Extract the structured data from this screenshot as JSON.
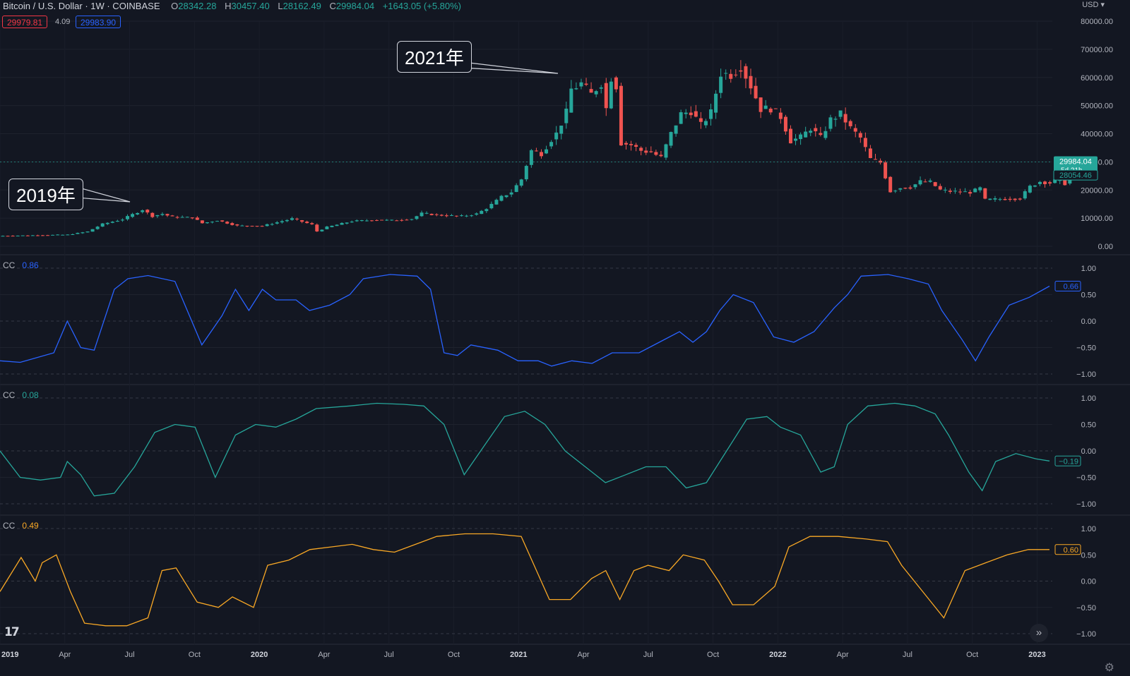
{
  "header": {
    "symbol": "Bitcoin / U.S. Dollar · 1W · COINBASE",
    "o_label": "O",
    "o_value": "28342.28",
    "h_label": "H",
    "h_value": "30457.40",
    "l_label": "L",
    "l_value": "28162.49",
    "c_label": "C",
    "c_value": "29984.04",
    "change": "+1643.05 (+5.80%)",
    "bid": "29979.81",
    "spread": "4.09",
    "ask": "29983.90"
  },
  "currency": "USD",
  "colors": {
    "background": "#131722",
    "up": "#26a69a",
    "down": "#ef5350",
    "cc1": "#2962ff",
    "cc2": "#26a69a",
    "cc3": "#f9a825",
    "text": "#d1d4dc",
    "grid": "#2a2e39"
  },
  "icons": {
    "logo": "tradingview-logo-icon",
    "settings": "gear-icon",
    "scroll": "double-chevron-right-icon"
  },
  "logo_text": "17",
  "annotations": [
    {
      "text": "2019年",
      "week": 30
    },
    {
      "text": "2021年",
      "week": 116
    }
  ],
  "price_labels": {
    "last": "29984.04",
    "countdown": "5d 21h",
    "secondary": "28054.46"
  },
  "chart_data": [
    {
      "type": "candlestick",
      "title": "Bitcoin / U.S. Dollar · 1W · COINBASE",
      "price_scale": [
        0,
        85000
      ],
      "y_ticks": [
        "0.00",
        "10000.00",
        "20000.00",
        "30000.00",
        "40000.00",
        "50000.00",
        "60000.00",
        "70000.00",
        "80000.00"
      ],
      "x_ticks": [
        "2019",
        "Apr",
        "Jul",
        "Oct",
        "2020",
        "Apr",
        "Jul",
        "Oct",
        "2021",
        "Apr",
        "Jul",
        "Oct",
        "2022",
        "Apr",
        "Jul",
        "Oct",
        "2023"
      ],
      "last_price": 29984.04,
      "secondary_price": 28054.46,
      "close_keypoints": [
        [
          0,
          3700
        ],
        [
          8,
          3950
        ],
        [
          13,
          4100
        ],
        [
          17,
          5200
        ],
        [
          20,
          7900
        ],
        [
          24,
          9600
        ],
        [
          26,
          11300
        ],
        [
          28,
          13000
        ],
        [
          30,
          10700
        ],
        [
          32,
          11500
        ],
        [
          34,
          10400
        ],
        [
          38,
          10200
        ],
        [
          40,
          8200
        ],
        [
          43,
          9200
        ],
        [
          47,
          7300
        ],
        [
          52,
          7200
        ],
        [
          58,
          9800
        ],
        [
          62,
          7700
        ],
        [
          63,
          5300
        ],
        [
          65,
          6800
        ],
        [
          70,
          8900
        ],
        [
          75,
          9400
        ],
        [
          78,
          9200
        ],
        [
          82,
          9700
        ],
        [
          84,
          11700
        ],
        [
          88,
          11000
        ],
        [
          92,
          10700
        ],
        [
          95,
          11500
        ],
        [
          97,
          13500
        ],
        [
          100,
          17500
        ],
        [
          102,
          19300
        ],
        [
          104,
          23800
        ],
        [
          106,
          34000
        ],
        [
          108,
          33000
        ],
        [
          110,
          38000
        ],
        [
          111,
          40000
        ],
        [
          113,
          47500
        ],
        [
          114,
          55800
        ],
        [
          116,
          57800
        ],
        [
          118,
          54000
        ],
        [
          120,
          58000
        ],
        [
          121,
          49000
        ],
        [
          122,
          60000
        ],
        [
          123,
          57000
        ],
        [
          124,
          36700
        ],
        [
          126,
          36000
        ],
        [
          128,
          34000
        ],
        [
          130,
          33500
        ],
        [
          132,
          31500
        ],
        [
          134,
          40000
        ],
        [
          136,
          47000
        ],
        [
          138,
          48000
        ],
        [
          140,
          43000
        ],
        [
          142,
          47500
        ],
        [
          144,
          61500
        ],
        [
          146,
          61000
        ],
        [
          148,
          64000
        ],
        [
          150,
          57000
        ],
        [
          152,
          48800
        ],
        [
          154,
          49000
        ],
        [
          156,
          46000
        ],
        [
          158,
          37500
        ],
        [
          160,
          38700
        ],
        [
          162,
          42000
        ],
        [
          164,
          38500
        ],
        [
          166,
          45000
        ],
        [
          168,
          47000
        ],
        [
          170,
          42000
        ],
        [
          172,
          38500
        ],
        [
          174,
          31000
        ],
        [
          176,
          29800
        ],
        [
          178,
          19500
        ],
        [
          180,
          20800
        ],
        [
          182,
          21000
        ],
        [
          184,
          23000
        ],
        [
          186,
          22800
        ],
        [
          188,
          20000
        ],
        [
          190,
          19500
        ],
        [
          194,
          19200
        ],
        [
          196,
          20600
        ],
        [
          197,
          16500
        ],
        [
          200,
          16800
        ],
        [
          204,
          17000
        ],
        [
          206,
          21200
        ],
        [
          208,
          23000
        ],
        [
          210,
          22500
        ],
        [
          212,
          24000
        ],
        [
          213,
          22300
        ],
        [
          214,
          29984
        ]
      ],
      "candles_count": 215
    },
    {
      "type": "line",
      "name": "CC",
      "current_value": "0.86",
      "axis_label": "0.66",
      "ylim": [
        -1.2,
        1.3
      ],
      "y_ticks": [
        "1.00",
        "0.50",
        "0.00",
        "−0.50",
        "−1.00"
      ],
      "keypoints": [
        [
          0,
          -0.75
        ],
        [
          3,
          -0.78
        ],
        [
          8,
          -0.6
        ],
        [
          10,
          0.0
        ],
        [
          12,
          -0.5
        ],
        [
          14,
          -0.55
        ],
        [
          17,
          0.6
        ],
        [
          19,
          0.8
        ],
        [
          22,
          0.86
        ],
        [
          26,
          0.75
        ],
        [
          30,
          -0.45
        ],
        [
          33,
          0.1
        ],
        [
          35,
          0.6
        ],
        [
          37,
          0.2
        ],
        [
          39,
          0.6
        ],
        [
          41,
          0.4
        ],
        [
          44,
          0.4
        ],
        [
          46,
          0.2
        ],
        [
          49,
          0.3
        ],
        [
          52,
          0.5
        ],
        [
          54,
          0.8
        ],
        [
          58,
          0.88
        ],
        [
          62,
          0.85
        ],
        [
          64,
          0.6
        ],
        [
          66,
          -0.6
        ],
        [
          68,
          -0.65
        ],
        [
          70,
          -0.45
        ],
        [
          74,
          -0.55
        ],
        [
          77,
          -0.75
        ],
        [
          80,
          -0.75
        ],
        [
          82,
          -0.85
        ],
        [
          85,
          -0.75
        ],
        [
          88,
          -0.8
        ],
        [
          91,
          -0.6
        ],
        [
          95,
          -0.6
        ],
        [
          98,
          -0.4
        ],
        [
          101,
          -0.2
        ],
        [
          103,
          -0.4
        ],
        [
          105,
          -0.2
        ],
        [
          107,
          0.2
        ],
        [
          109,
          0.5
        ],
        [
          112,
          0.35
        ],
        [
          115,
          -0.3
        ],
        [
          118,
          -0.4
        ],
        [
          121,
          -0.2
        ],
        [
          124,
          0.25
        ],
        [
          126,
          0.5
        ],
        [
          128,
          0.85
        ],
        [
          132,
          0.88
        ],
        [
          135,
          0.8
        ],
        [
          138,
          0.7
        ],
        [
          140,
          0.2
        ],
        [
          143,
          -0.35
        ],
        [
          145,
          -0.75
        ],
        [
          147,
          -0.3
        ],
        [
          150,
          0.3
        ],
        [
          153,
          0.45
        ],
        [
          156,
          0.66
        ]
      ]
    },
    {
      "type": "line",
      "name": "CC",
      "current_value": "0.08",
      "axis_label": "−0.19",
      "ylim": [
        -1.2,
        1.3
      ],
      "y_ticks": [
        "1.00",
        "0.50",
        "0.00",
        "−0.50",
        "−1.00"
      ],
      "keypoints": [
        [
          0,
          0.0
        ],
        [
          3,
          -0.5
        ],
        [
          6,
          -0.55
        ],
        [
          9,
          -0.5
        ],
        [
          10,
          -0.2
        ],
        [
          12,
          -0.45
        ],
        [
          14,
          -0.85
        ],
        [
          17,
          -0.8
        ],
        [
          20,
          -0.3
        ],
        [
          23,
          0.35
        ],
        [
          26,
          0.5
        ],
        [
          29,
          0.45
        ],
        [
          32,
          -0.5
        ],
        [
          35,
          0.3
        ],
        [
          38,
          0.5
        ],
        [
          41,
          0.45
        ],
        [
          44,
          0.6
        ],
        [
          47,
          0.8
        ],
        [
          52,
          0.85
        ],
        [
          56,
          0.9
        ],
        [
          60,
          0.88
        ],
        [
          63,
          0.85
        ],
        [
          66,
          0.5
        ],
        [
          69,
          -0.45
        ],
        [
          72,
          0.1
        ],
        [
          75,
          0.65
        ],
        [
          78,
          0.75
        ],
        [
          81,
          0.5
        ],
        [
          84,
          0.0
        ],
        [
          87,
          -0.3
        ],
        [
          90,
          -0.6
        ],
        [
          93,
          -0.45
        ],
        [
          96,
          -0.3
        ],
        [
          99,
          -0.3
        ],
        [
          102,
          -0.7
        ],
        [
          105,
          -0.6
        ],
        [
          108,
          0.0
        ],
        [
          111,
          0.6
        ],
        [
          114,
          0.65
        ],
        [
          116,
          0.45
        ],
        [
          119,
          0.3
        ],
        [
          122,
          -0.4
        ],
        [
          124,
          -0.3
        ],
        [
          126,
          0.5
        ],
        [
          129,
          0.85
        ],
        [
          133,
          0.9
        ],
        [
          136,
          0.85
        ],
        [
          139,
          0.7
        ],
        [
          141,
          0.3
        ],
        [
          144,
          -0.4
        ],
        [
          146,
          -0.75
        ],
        [
          148,
          -0.2
        ],
        [
          151,
          -0.05
        ],
        [
          154,
          -0.15
        ],
        [
          156,
          -0.19
        ]
      ]
    },
    {
      "type": "line",
      "name": "CC",
      "current_value": "0.49",
      "axis_label": "0.60",
      "ylim": [
        -1.2,
        1.3
      ],
      "y_ticks": [
        "1.00",
        "0.50",
        "0.00",
        "−0.50",
        "−1.00"
      ],
      "keypoints": [
        [
          0,
          -0.2
        ],
        [
          3,
          0.45
        ],
        [
          5,
          0.0
        ],
        [
          6,
          0.35
        ],
        [
          8,
          0.5
        ],
        [
          10,
          -0.2
        ],
        [
          12,
          -0.8
        ],
        [
          15,
          -0.85
        ],
        [
          18,
          -0.85
        ],
        [
          21,
          -0.7
        ],
        [
          23,
          0.2
        ],
        [
          25,
          0.25
        ],
        [
          28,
          -0.4
        ],
        [
          31,
          -0.5
        ],
        [
          33,
          -0.3
        ],
        [
          36,
          -0.5
        ],
        [
          38,
          0.3
        ],
        [
          41,
          0.4
        ],
        [
          44,
          0.6
        ],
        [
          47,
          0.65
        ],
        [
          50,
          0.7
        ],
        [
          53,
          0.6
        ],
        [
          56,
          0.55
        ],
        [
          59,
          0.7
        ],
        [
          62,
          0.85
        ],
        [
          66,
          0.9
        ],
        [
          70,
          0.9
        ],
        [
          74,
          0.85
        ],
        [
          78,
          -0.35
        ],
        [
          81,
          -0.35
        ],
        [
          84,
          0.05
        ],
        [
          86,
          0.2
        ],
        [
          88,
          -0.35
        ],
        [
          90,
          0.2
        ],
        [
          92,
          0.3
        ],
        [
          95,
          0.2
        ],
        [
          97,
          0.5
        ],
        [
          100,
          0.4
        ],
        [
          102,
          0.0
        ],
        [
          104,
          -0.45
        ],
        [
          107,
          -0.45
        ],
        [
          110,
          -0.1
        ],
        [
          112,
          0.65
        ],
        [
          115,
          0.85
        ],
        [
          119,
          0.85
        ],
        [
          123,
          0.8
        ],
        [
          126,
          0.75
        ],
        [
          128,
          0.3
        ],
        [
          131,
          -0.2
        ],
        [
          134,
          -0.7
        ],
        [
          137,
          0.2
        ],
        [
          140,
          0.35
        ],
        [
          143,
          0.5
        ],
        [
          146,
          0.6
        ],
        [
          149,
          0.6
        ]
      ]
    }
  ],
  "panes": [
    {
      "label": "CC",
      "value": "0.86"
    },
    {
      "label": "CC",
      "value": "0.08"
    },
    {
      "label": "CC",
      "value": "0.49"
    }
  ]
}
